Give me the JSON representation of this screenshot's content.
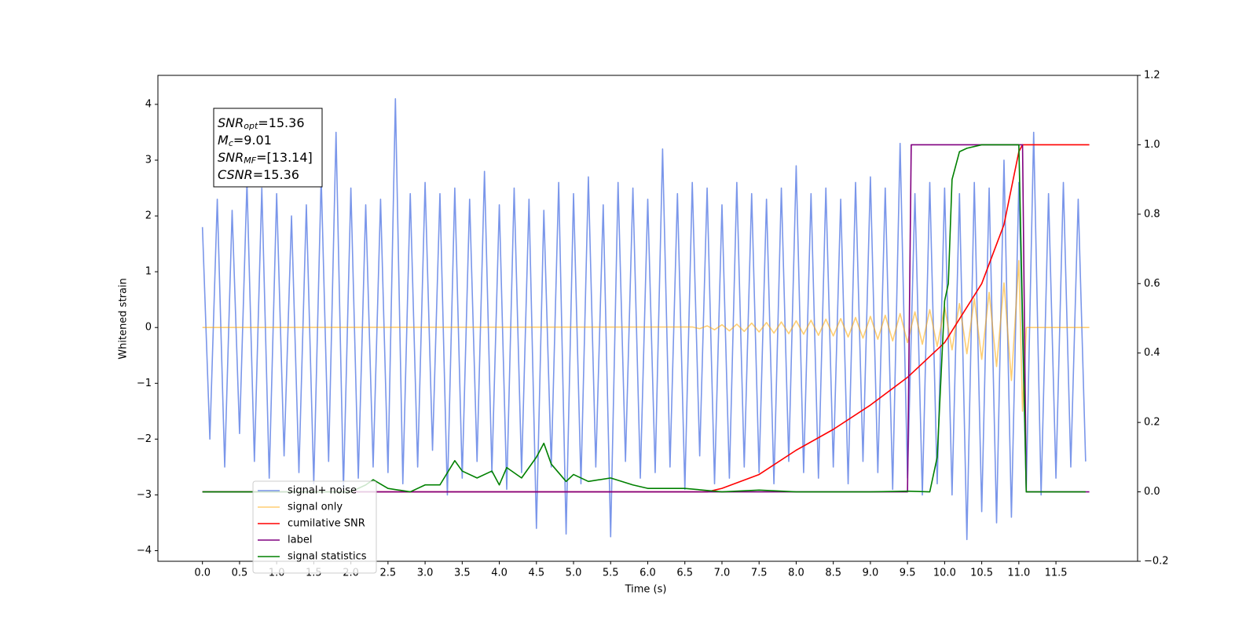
{
  "chart_data": {
    "type": "line",
    "xlabel": "Time (s)",
    "ylabel": "Whitened strain",
    "xlim": [
      -0.6,
      12.6
    ],
    "ylim": [
      -4.19,
      4.52
    ],
    "y2lim": [
      -0.2,
      1.2
    ],
    "xticks": [
      {
        "value": 0,
        "label": "0.0"
      },
      0.5,
      {
        "value": 1,
        "label": "1.0"
      },
      1.5,
      {
        "value": 2,
        "label": "2.0"
      },
      2.5,
      {
        "value": 3,
        "label": "3.0"
      },
      3.5,
      {
        "value": 4,
        "label": "4.0"
      },
      4.5,
      {
        "value": 5,
        "label": "5.0"
      },
      5.5,
      {
        "value": 6,
        "label": "6.0"
      },
      6.5,
      {
        "value": 7,
        "label": "7.0"
      },
      7.5,
      {
        "value": 8,
        "label": "8.0"
      },
      8.5,
      {
        "value": 9,
        "label": "9.0"
      },
      9.5,
      {
        "value": 10,
        "label": "10.0"
      },
      10.5,
      {
        "value": 11,
        "label": "11.0"
      },
      11.5
    ],
    "yticks": [
      {
        "value": -4,
        "label": "−4"
      },
      {
        "value": -3,
        "label": "−3"
      },
      {
        "value": -2,
        "label": "−2"
      },
      {
        "value": -1,
        "label": "−1"
      },
      0,
      1,
      2,
      3,
      4
    ],
    "y2ticks": [
      {
        "value": -0.2,
        "label": "−0.2"
      },
      {
        "value": 0,
        "label": "0.0"
      },
      0.2,
      0.4,
      0.6,
      0.8,
      {
        "value": 1,
        "label": "1.0"
      },
      1.2
    ],
    "legend": "lower left",
    "annotation": [
      {
        "main": "SNR",
        "sub": "opt",
        "tail": "=15.36"
      },
      {
        "main": "M",
        "sub": "c",
        "tail": "=9.01"
      },
      {
        "main": "SNR",
        "sub": "MF",
        "tail": "=[13.14]"
      },
      {
        "main": "CSNR",
        "tail": "=15.36"
      }
    ],
    "series": [
      {
        "name": "signal+ noise",
        "color": "#4169e1",
        "alpha": 0.7,
        "x": [
          0,
          0.1,
          0.2,
          0.3,
          0.4,
          0.5,
          0.6,
          0.7,
          0.8,
          0.9,
          1,
          1.1,
          1.2,
          1.3,
          1.4,
          1.5,
          1.6,
          1.7,
          1.8,
          1.9,
          2,
          2.1,
          2.2,
          2.3,
          2.4,
          2.5,
          2.6,
          2.7,
          2.8,
          2.9,
          3,
          3.1,
          3.2,
          3.3,
          3.4,
          3.5,
          3.6,
          3.7,
          3.8,
          3.9,
          4,
          4.1,
          4.2,
          4.3,
          4.4,
          4.5,
          4.6,
          4.7,
          4.8,
          4.9,
          5,
          5.1,
          5.2,
          5.3,
          5.4,
          5.5,
          5.6,
          5.7,
          5.8,
          5.9,
          6,
          6.1,
          6.2,
          6.3,
          6.4,
          6.5,
          6.6,
          6.7,
          6.8,
          6.9,
          7,
          7.1,
          7.2,
          7.3,
          7.4,
          7.5,
          7.6,
          7.7,
          7.8,
          7.9,
          8,
          8.1,
          8.2,
          8.3,
          8.4,
          8.5,
          8.6,
          8.7,
          8.8,
          8.9,
          9,
          9.1,
          9.2,
          9.3,
          9.4,
          9.5,
          9.6,
          9.7,
          9.8,
          9.9,
          10,
          10.1,
          10.2,
          10.3,
          10.4,
          10.5,
          10.6,
          10.7,
          10.8,
          10.9,
          11,
          11.1,
          11.2,
          11.3,
          11.4,
          11.5,
          11.6,
          11.7,
          11.8,
          11.9
        ],
        "values": [
          1.8,
          -2.0,
          2.3,
          -2.5,
          2.1,
          -1.9,
          2.6,
          -2.4,
          2.5,
          -2.7,
          2.4,
          -2.3,
          2.0,
          -2.6,
          2.2,
          -2.8,
          2.7,
          -2.4,
          3.5,
          -2.9,
          2.5,
          -2.7,
          2.2,
          -2.5,
          2.3,
          -2.6,
          4.1,
          -2.8,
          2.4,
          -2.5,
          2.6,
          -2.2,
          2.4,
          -3.0,
          2.5,
          -2.7,
          2.3,
          -2.4,
          2.8,
          -2.6,
          2.2,
          -2.9,
          2.5,
          -2.6,
          2.3,
          -3.6,
          2.1,
          -2.5,
          2.6,
          -3.7,
          2.4,
          -2.8,
          2.7,
          -2.5,
          2.2,
          -3.75,
          2.6,
          -2.4,
          2.5,
          -2.7,
          2.3,
          -2.6,
          3.2,
          -2.5,
          2.4,
          -2.9,
          2.6,
          -2.3,
          2.5,
          -2.8,
          2.2,
          -2.7,
          2.6,
          -2.5,
          2.4,
          -2.6,
          2.3,
          -2.8,
          2.5,
          -2.4,
          2.9,
          -2.6,
          2.4,
          -2.7,
          2.5,
          -2.5,
          2.3,
          -2.8,
          2.6,
          -2.4,
          2.7,
          -2.6,
          2.5,
          -2.9,
          3.3,
          -2.7,
          2.4,
          -3.0,
          2.6,
          -2.8,
          2.5,
          -3.0,
          2.4,
          -3.8,
          2.6,
          -3.3,
          2.5,
          -3.5,
          3.0,
          -3.4,
          2.6,
          -2.9,
          3.5,
          -3.0,
          2.4,
          -2.7,
          2.6,
          -2.5,
          2.3,
          -2.4
        ]
      },
      {
        "name": "signal only",
        "color": "#ffa500",
        "alpha": 0.55,
        "x": [
          0,
          6.6,
          6.7,
          6.8,
          6.9,
          7,
          7.1,
          7.2,
          7.3,
          7.4,
          7.5,
          7.6,
          7.7,
          7.8,
          7.9,
          8,
          8.1,
          8.2,
          8.3,
          8.4,
          8.5,
          8.6,
          8.7,
          8.8,
          8.9,
          9,
          9.1,
          9.2,
          9.3,
          9.4,
          9.5,
          9.6,
          9.7,
          9.8,
          9.9,
          10,
          10.1,
          10.2,
          10.3,
          10.4,
          10.5,
          10.6,
          10.7,
          10.8,
          10.9,
          11,
          11.05,
          11.1,
          11.95
        ],
        "values": [
          0,
          0.01,
          -0.02,
          0.03,
          -0.04,
          0.05,
          -0.06,
          0.06,
          -0.07,
          0.08,
          -0.08,
          0.09,
          -0.1,
          0.1,
          -0.11,
          0.12,
          -0.12,
          0.13,
          -0.14,
          0.15,
          -0.15,
          0.16,
          -0.17,
          0.18,
          -0.19,
          0.2,
          -0.21,
          0.22,
          -0.24,
          0.25,
          -0.27,
          0.28,
          -0.3,
          0.32,
          -0.34,
          0.37,
          -0.4,
          0.43,
          -0.47,
          0.52,
          -0.57,
          0.63,
          -0.7,
          0.8,
          -0.95,
          1.2,
          -1.5,
          0,
          0
        ]
      },
      {
        "name": "cumilative SNR",
        "color": "#ff0000",
        "axis": "y2",
        "x": [
          0,
          6.8,
          7,
          7.5,
          8,
          8.5,
          9,
          9.5,
          10,
          10.5,
          10.8,
          11,
          11.05,
          11.95
        ],
        "values": [
          0,
          0,
          0.01,
          0.05,
          0.12,
          0.18,
          0.25,
          0.33,
          0.43,
          0.6,
          0.77,
          0.98,
          1.0,
          1.0
        ]
      },
      {
        "name": "label",
        "color": "#800080",
        "axis": "y2",
        "x": [
          0,
          9.5,
          9.55,
          11.05,
          11.1,
          11.95
        ],
        "values": [
          0,
          0,
          1,
          1,
          0,
          0
        ]
      },
      {
        "name": "signal statistics",
        "color": "#008000",
        "axis": "y2",
        "x": [
          0,
          2,
          2.2,
          2.3,
          2.5,
          2.8,
          3,
          3.2,
          3.4,
          3.5,
          3.7,
          3.9,
          4,
          4.1,
          4.3,
          4.5,
          4.6,
          4.7,
          4.9,
          5,
          5.2,
          5.5,
          5.8,
          6,
          6.5,
          7,
          7.5,
          8,
          9,
          9.5,
          9.8,
          9.9,
          10,
          10.05,
          10.1,
          10.2,
          10.3,
          10.5,
          10.7,
          11,
          11.05,
          11.1,
          11.9
        ],
        "values": [
          0,
          0,
          0.02,
          0.035,
          0.01,
          0.0,
          0.02,
          0.02,
          0.09,
          0.06,
          0.04,
          0.06,
          0.02,
          0.07,
          0.04,
          0.1,
          0.14,
          0.08,
          0.03,
          0.05,
          0.03,
          0.04,
          0.02,
          0.01,
          0.01,
          0.0,
          0.005,
          0.0,
          0.0,
          0.002,
          0.0,
          0.1,
          0.55,
          0.6,
          0.9,
          0.98,
          0.99,
          1.0,
          1.0,
          1.0,
          0.5,
          0.0,
          0.0
        ]
      }
    ]
  }
}
